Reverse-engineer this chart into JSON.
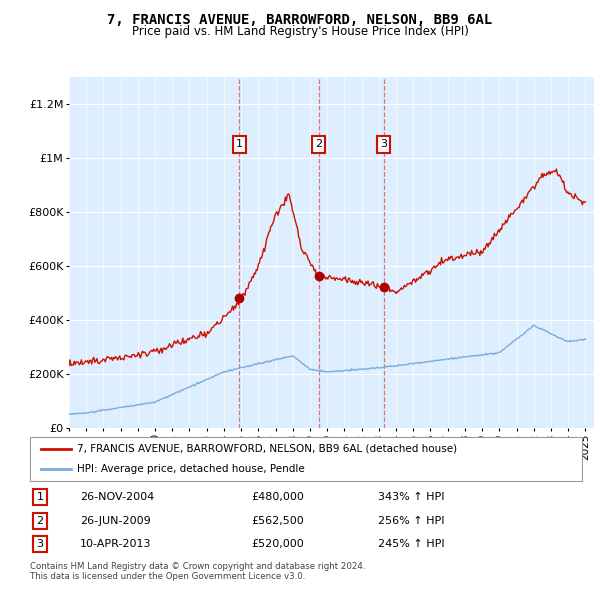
{
  "title": "7, FRANCIS AVENUE, BARROWFORD, NELSON, BB9 6AL",
  "subtitle": "Price paid vs. HM Land Registry's House Price Index (HPI)",
  "hpi_label": "HPI: Average price, detached house, Pendle",
  "property_label": "7, FRANCIS AVENUE, BARROWFORD, NELSON, BB9 6AL (detached house)",
  "footer": "Contains HM Land Registry data © Crown copyright and database right 2024.\nThis data is licensed under the Open Government Licence v3.0.",
  "transactions": [
    {
      "num": 1,
      "date": "26-NOV-2004",
      "price": 480000,
      "hpi_pct": "343%",
      "year": 2004.9
    },
    {
      "num": 2,
      "date": "26-JUN-2009",
      "price": 562500,
      "hpi_pct": "256%",
      "year": 2009.5
    },
    {
      "num": 3,
      "date": "10-APR-2013",
      "price": 520000,
      "hpi_pct": "245%",
      "year": 2013.28
    }
  ],
  "hpi_color": "#7aaddb",
  "price_color": "#cc1100",
  "vline_color": "#dd6666",
  "dot_color": "#aa0000",
  "background_color": "#ddeeff",
  "ylim": [
    0,
    1300000
  ],
  "yticks": [
    0,
    200000,
    400000,
    600000,
    800000,
    1000000,
    1200000
  ],
  "ytick_labels": [
    "£0",
    "£200K",
    "£400K",
    "£600K",
    "£800K",
    "£1M",
    "£1.2M"
  ],
  "xmin": 1995,
  "xmax": 2025.5,
  "xticks": [
    1995,
    1996,
    1997,
    1998,
    1999,
    2000,
    2001,
    2002,
    2003,
    2004,
    2005,
    2006,
    2007,
    2008,
    2009,
    2010,
    2011,
    2012,
    2013,
    2014,
    2015,
    2016,
    2017,
    2018,
    2019,
    2020,
    2021,
    2022,
    2023,
    2024,
    2025
  ]
}
